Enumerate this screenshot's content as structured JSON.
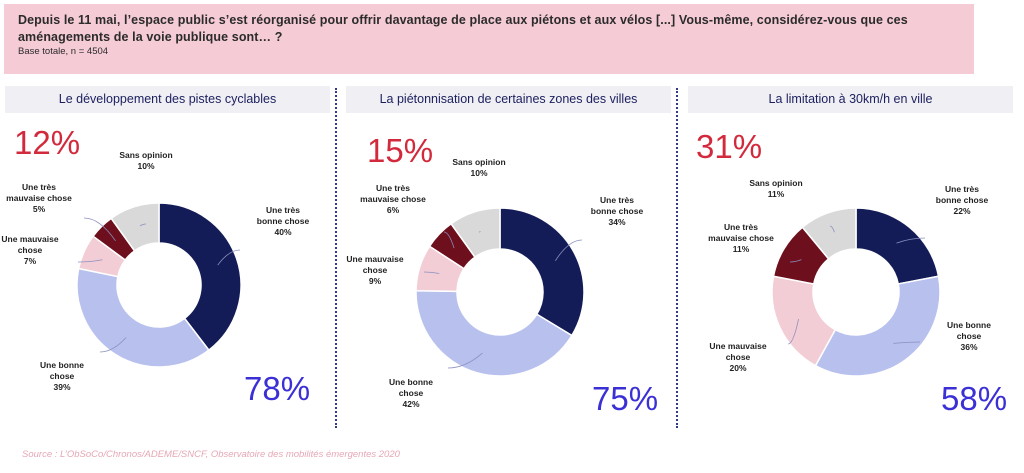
{
  "header": {
    "question": "Depuis le 11 mai, l’espace public s’est réorganisé pour offrir davantage de place aux piétons et aux vélos [...] Vous-même, considérez-vous que ces aménagements de la voie publique sont… ?",
    "base": "Base totale, n = 4504"
  },
  "source": "Source : L’ObSoCo/Chronos/ADEME/SNCF, Observatoire des mobilités émergentes 2020",
  "colors": {
    "tres_bonne": "#141c57",
    "bonne": "#b8c0ee",
    "mauvaise": "#f3cdd5",
    "tres_mauvaise": "#6d0f1c",
    "sans_opinion": "#d9d9d9",
    "negative_text": "#d22a3c",
    "positive_text": "#3b2fd6"
  },
  "chart_data": [
    {
      "type": "pie",
      "title": "Le développement des pistes cyclables",
      "negative_total": "12%",
      "positive_total": "78%",
      "slices": [
        {
          "label": "Une très bonne chose",
          "value": 40,
          "text": "40%"
        },
        {
          "label": "Une bonne chose",
          "value": 39,
          "text": "39%"
        },
        {
          "label": "Une mauvaise chose",
          "value": 7,
          "text": "7%"
        },
        {
          "label": "Une très mauvaise chose",
          "value": 5,
          "text": "5%"
        },
        {
          "label": "Sans opinion",
          "value": 10,
          "text": "10%"
        }
      ]
    },
    {
      "type": "pie",
      "title": "La piétonnisation de certaines zones des villes",
      "negative_total": "15%",
      "positive_total": "75%",
      "slices": [
        {
          "label": "Une très bonne chose",
          "value": 34,
          "text": "34%"
        },
        {
          "label": "Une bonne chose",
          "value": 42,
          "text": "42%"
        },
        {
          "label": "Une mauvaise chose",
          "value": 9,
          "text": "9%"
        },
        {
          "label": "Une très mauvaise chose",
          "value": 6,
          "text": "6%"
        },
        {
          "label": "Sans opinion",
          "value": 10,
          "text": "10%"
        }
      ]
    },
    {
      "type": "pie",
      "title": "La limitation à 30km/h en ville",
      "negative_total": "31%",
      "positive_total": "58%",
      "slices": [
        {
          "label": "Une très bonne chose",
          "value": 22,
          "text": "22%"
        },
        {
          "label": "Une bonne chose",
          "value": 36,
          "text": "36%"
        },
        {
          "label": "Une mauvaise chose",
          "value": 20,
          "text": "20%"
        },
        {
          "label": "Une très mauvaise chose",
          "value": 11,
          "text": "11%"
        },
        {
          "label": "Sans opinion",
          "value": 11,
          "text": "11%"
        }
      ]
    }
  ]
}
